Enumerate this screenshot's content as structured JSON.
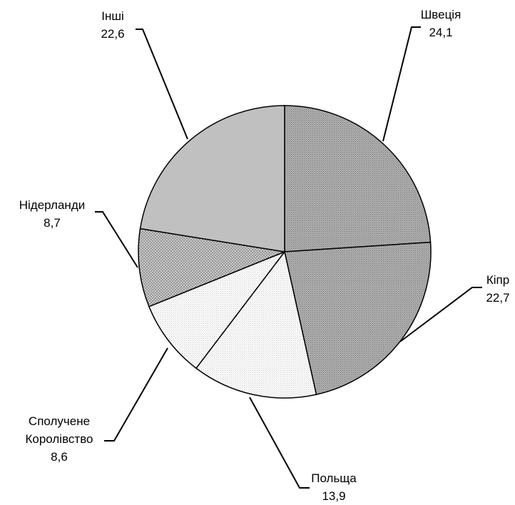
{
  "chart_data": {
    "type": "pie",
    "title": "",
    "start_angle_deg": 0,
    "direction": "clockwise",
    "slices": [
      {
        "name": "Швеція",
        "value": 24.1,
        "value_label": "24,1",
        "fill": "#9a9a9a",
        "pattern": "dense"
      },
      {
        "name": "Кіпр",
        "value": 22.7,
        "value_label": "22,7",
        "fill": "#a8a8a8",
        "pattern": "dense"
      },
      {
        "name": "Польща",
        "value": 13.9,
        "value_label": "13,9",
        "fill": "#f4f4f4",
        "pattern": "fine"
      },
      {
        "name": "Сполучене Королівство",
        "name_lines": [
          "Сполучене",
          "Королівство"
        ],
        "value": 8.6,
        "value_label": "8,6",
        "fill": "#e4e4e4",
        "pattern": "fine"
      },
      {
        "name": "Нідерланди",
        "value": 8.7,
        "value_label": "8,7",
        "fill": "#c6c6c6",
        "pattern": "cross"
      },
      {
        "name": "Інші",
        "value": 22.6,
        "value_label": "22,6",
        "fill": "#c0c0c0",
        "pattern": "none"
      }
    ]
  }
}
